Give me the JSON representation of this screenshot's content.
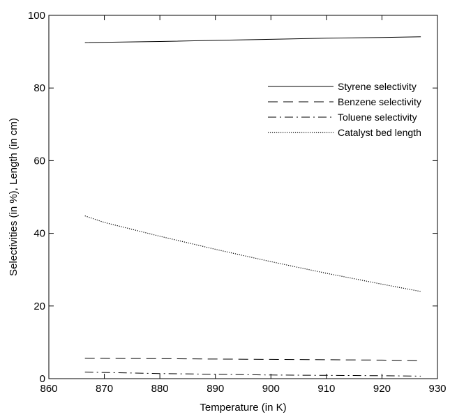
{
  "chart_data": {
    "type": "line",
    "title": "",
    "xlabel": "Temperature (in K)",
    "ylabel": "Selectivities (in %), Length (in cm)",
    "xlim": [
      860,
      930
    ],
    "ylim": [
      0,
      100
    ],
    "xticks": [
      860,
      870,
      880,
      890,
      900,
      910,
      920,
      930
    ],
    "yticks": [
      0,
      20,
      40,
      60,
      80,
      100
    ],
    "grid": false,
    "legend_position": "top-right",
    "series": [
      {
        "name": "Styrene selectivity",
        "style": "solid",
        "x": [
          866.5,
          880,
          890,
          900,
          910,
          920,
          927
        ],
        "y": [
          92.5,
          92.8,
          93.1,
          93.4,
          93.7,
          93.9,
          94.1
        ]
      },
      {
        "name": "Benzene selectivity",
        "style": "dashed",
        "x": [
          866.5,
          880,
          890,
          900,
          910,
          920,
          927
        ],
        "y": [
          5.6,
          5.5,
          5.4,
          5.3,
          5.2,
          5.1,
          5.0
        ]
      },
      {
        "name": "Toluene selectivity",
        "style": "dashdot",
        "x": [
          866.5,
          880,
          890,
          900,
          910,
          920,
          927
        ],
        "y": [
          1.8,
          1.4,
          1.2,
          1.0,
          0.9,
          0.8,
          0.7
        ]
      },
      {
        "name": "Catalyst bed length",
        "style": "dotted",
        "x": [
          866.5,
          870,
          875,
          880,
          885,
          890,
          895,
          900,
          905,
          910,
          915,
          920,
          927
        ],
        "y": [
          44.8,
          43.0,
          41.1,
          39.2,
          37.4,
          35.6,
          33.9,
          32.2,
          30.6,
          29.0,
          27.5,
          26.0,
          24.0
        ]
      }
    ]
  }
}
